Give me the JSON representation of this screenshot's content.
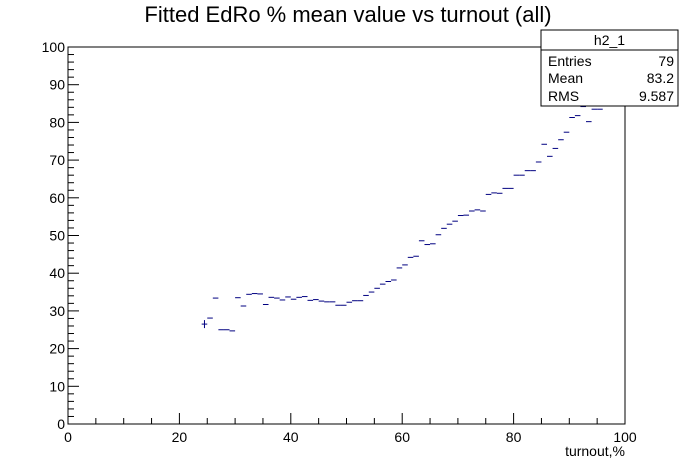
{
  "chart_data": {
    "type": "scatter",
    "title": "Fitted EdRo % mean value vs turnout (all)",
    "xlabel": "turnout,%",
    "ylabel": "",
    "xlim": [
      0,
      100
    ],
    "ylim": [
      0,
      100
    ],
    "x_ticks": [
      0,
      20,
      40,
      60,
      80,
      100
    ],
    "y_ticks": [
      0,
      10,
      20,
      30,
      40,
      50,
      60,
      70,
      80,
      90,
      100
    ],
    "bin_width": 1,
    "grid": false,
    "series": [
      {
        "x": [
          24.5,
          25.5,
          26.5,
          27.5,
          28.5,
          29.5,
          30.5,
          31.5,
          32.5,
          33.5,
          34.5,
          35.5,
          36.5,
          37.5,
          38.5,
          39.5,
          40.5,
          41.5,
          42.5,
          43.5,
          44.5,
          45.5,
          46.5,
          47.5,
          48.5,
          49.5,
          50.5,
          51.5,
          52.5,
          53.5,
          54.5,
          55.5,
          56.5,
          57.5,
          58.5,
          59.5,
          60.5,
          61.5,
          62.5,
          63.5,
          64.5,
          65.5,
          66.5,
          67.5,
          68.5,
          69.5,
          70.5,
          71.5,
          72.5,
          73.5,
          74.5,
          75.5,
          76.5,
          77.5,
          78.5,
          79.5,
          80.5,
          81.5,
          82.5,
          83.5,
          84.5,
          85.5,
          86.5,
          87.5,
          88.5,
          89.5,
          90.5,
          91.5,
          92.5,
          93.5,
          94.5,
          95.5
        ],
        "y": [
          26.5,
          28.1,
          33.4,
          25.0,
          25.0,
          24.7,
          33.5,
          31.3,
          34.4,
          34.6,
          34.5,
          31.7,
          33.6,
          33.4,
          32.9,
          33.7,
          33.1,
          33.6,
          33.8,
          32.8,
          33.0,
          32.6,
          32.4,
          32.4,
          31.5,
          31.5,
          32.3,
          32.7,
          32.7,
          34.1,
          35.0,
          36.0,
          37.1,
          37.8,
          38.2,
          41.4,
          42.2,
          44.2,
          44.5,
          48.6,
          47.6,
          47.8,
          50.2,
          51.9,
          53.0,
          53.8,
          55.3,
          55.4,
          56.5,
          56.8,
          56.5,
          60.9,
          61.3,
          61.2,
          62.5,
          62.5,
          66.0,
          66.0,
          67.2,
          67.2,
          69.5,
          74.2,
          71.0,
          73.1,
          75.4,
          77.4,
          81.3,
          81.8,
          84.2,
          80.2,
          83.5,
          83.5
        ]
      }
    ]
  },
  "stats_box": {
    "name": "h2_1",
    "rows": [
      {
        "label": "Entries",
        "value": "79"
      },
      {
        "label": "Mean",
        "value": "83.2"
      },
      {
        "label": "RMS",
        "value": "9.587"
      }
    ]
  }
}
